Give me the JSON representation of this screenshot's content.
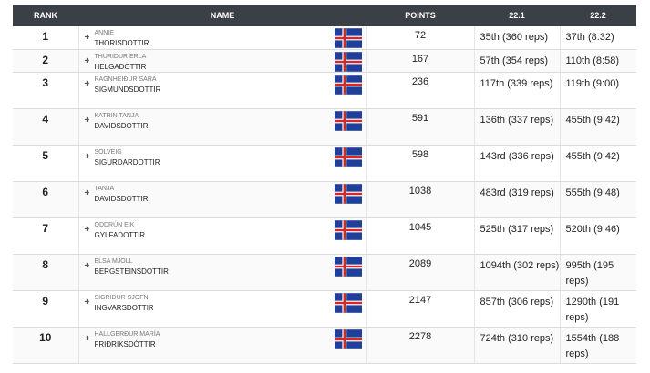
{
  "columns": {
    "rank": "RANK",
    "name": "NAME",
    "points": "POINTS",
    "e1": "22.1",
    "e2": "22.2"
  },
  "flag_colors": {
    "blue": "#1f3f9a",
    "white": "#ffffff",
    "red": "#d72828"
  },
  "rows": [
    {
      "rank": "1",
      "first": "ANNIE",
      "last": "THORISDOTTIR",
      "points": "72",
      "e1": "35th (360 reps)",
      "e2": "37th (8:32)"
    },
    {
      "rank": "2",
      "first": "THURIDUR ERLA",
      "last": "HELGADOTTIR",
      "points": "167",
      "e1": "57th (354 reps)",
      "e2": "110th (8:58)"
    },
    {
      "rank": "3",
      "first": "RAGNHEIÐUR SARA",
      "last": "SIGMUNDSDOTTIR",
      "points": "236",
      "e1": "117th (339 reps)",
      "e2": "119th (9:00)"
    },
    {
      "rank": "4",
      "first": "KATRIN TANJA",
      "last": "DAVIDSDOTTIR",
      "points": "591",
      "e1": "136th (337 reps)",
      "e2": "455th (9:42)"
    },
    {
      "rank": "5",
      "first": "SOLVEIG",
      "last": "SIGURDARDOTTIR",
      "points": "598",
      "e1": "143rd (336 reps)",
      "e2": "455th (9:42)"
    },
    {
      "rank": "6",
      "first": "TANJA",
      "last": "DAVIDSDOTTIR",
      "points": "1038",
      "e1": "483rd (319 reps)",
      "e2": "555th (9:48)"
    },
    {
      "rank": "7",
      "first": "ODDRÚN EIK",
      "last": "GYLFADOTTIR",
      "points": "1045",
      "e1": "525th (317 reps)",
      "e2": "520th (9:46)"
    },
    {
      "rank": "8",
      "first": "ELSA MJOLL",
      "last": "BERGSTEINSDOTTIR",
      "points": "2089",
      "e1": "1094th (302 reps)",
      "e2": "995th (195 reps)"
    },
    {
      "rank": "9",
      "first": "SIGRIDUR SJOFN",
      "last": "INGVARSDOTTIR",
      "points": "2147",
      "e1": "857th (306 reps)",
      "e2": "1290th (191 reps)"
    },
    {
      "rank": "10",
      "first": "HALLGERÐUR MARÍA",
      "last": "FRIÐRIKSDÓTTIR",
      "points": "2278",
      "e1": "724th (310 reps)",
      "e2": "1554th (188 reps)"
    }
  ]
}
